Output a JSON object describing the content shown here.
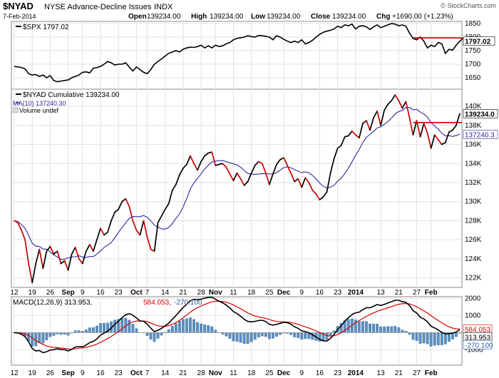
{
  "header": {
    "symbol": "$NYAD",
    "name": "NYSE Advance-Decline Issues",
    "exchange": "INDX",
    "date": "7-Feb-2014",
    "open_label": "Open",
    "open": "139234.00",
    "high_label": "High",
    "high": "139234.00",
    "low_label": "Low",
    "low": "139234.00",
    "close_label": "Close",
    "close": "139234.00",
    "chg_label": "Chg",
    "chg": "+1690.00 (+1.23%)",
    "watermark": "© StockCharts.com"
  },
  "colors": {
    "price": "#000000",
    "price_down": "#cc0000",
    "ma": "#2b2b9c",
    "macd": "#000000",
    "signal": "#dd0000",
    "hist": "#5a8fc2",
    "hline": "#cc0000"
  },
  "time_axis": {
    "labels": [
      {
        "i": 0,
        "t": "12"
      },
      {
        "i": 5,
        "t": "19"
      },
      {
        "i": 10,
        "t": "26"
      },
      {
        "i": 15,
        "t": "Sep",
        "bold": true
      },
      {
        "i": 19,
        "t": "9"
      },
      {
        "i": 24,
        "t": "16"
      },
      {
        "i": 29,
        "t": "23"
      },
      {
        "i": 34,
        "t": "Oct",
        "bold": true
      },
      {
        "i": 37,
        "t": "7"
      },
      {
        "i": 42,
        "t": "14"
      },
      {
        "i": 47,
        "t": "21"
      },
      {
        "i": 52,
        "t": "28"
      },
      {
        "i": 56,
        "t": "Nov",
        "bold": true
      },
      {
        "i": 61,
        "t": "11"
      },
      {
        "i": 66,
        "t": "18"
      },
      {
        "i": 71,
        "t": "25"
      },
      {
        "i": 75,
        "t": "Dec",
        "bold": true
      },
      {
        "i": 80,
        "t": "9"
      },
      {
        "i": 85,
        "t": "16"
      },
      {
        "i": 90,
        "t": "23"
      },
      {
        "i": 95,
        "t": "2014",
        "bold": true
      },
      {
        "i": 102,
        "t": "13"
      },
      {
        "i": 107,
        "t": "21"
      },
      {
        "i": 112,
        "t": "27"
      },
      {
        "i": 116,
        "t": "Feb",
        "bold": true
      }
    ]
  },
  "chart_data": [
    {
      "type": "line",
      "legend": "$SPX 1797.02",
      "ylim": [
        1608,
        1858
      ],
      "yticks": [
        "1650",
        "1700",
        "1750",
        "1800",
        "1850"
      ],
      "last_label": "1797.02",
      "hline": {
        "value": 1797.02,
        "from_i": 111
      },
      "values": [
        1692,
        1690,
        1688,
        1683,
        1665,
        1660,
        1662,
        1655,
        1660,
        1650,
        1658,
        1640,
        1635,
        1638,
        1640,
        1642,
        1650,
        1655,
        1660,
        1670,
        1672,
        1668,
        1685,
        1688,
        1692,
        1700,
        1710,
        1705,
        1697,
        1700,
        1700,
        1705,
        1690,
        1675,
        1690,
        1680,
        1670,
        1665,
        1680,
        1700,
        1710,
        1720,
        1730,
        1740,
        1745,
        1750,
        1745,
        1755,
        1760,
        1763,
        1762,
        1765,
        1770,
        1760,
        1768,
        1760,
        1770,
        1765,
        1768,
        1775,
        1780,
        1790,
        1795,
        1798,
        1800,
        1805,
        1802,
        1800,
        1806,
        1805,
        1803,
        1800,
        1790,
        1805,
        1800,
        1792,
        1785,
        1780,
        1785,
        1780,
        1790,
        1775,
        1780,
        1788,
        1800,
        1810,
        1818,
        1822,
        1825,
        1830,
        1840,
        1835,
        1845,
        1842,
        1848,
        1830,
        1840,
        1842,
        1838,
        1828,
        1838,
        1845,
        1835,
        1840,
        1845,
        1850,
        1848,
        1842,
        1845,
        1840,
        1815,
        1795,
        1790,
        1800,
        1785,
        1760,
        1770,
        1765,
        1780,
        1775,
        1740,
        1755,
        1752,
        1770,
        1785,
        1797.02
      ]
    },
    {
      "type": "line",
      "legend": "$NYAD Cumulative 139234.00",
      "ma_legend": "MA(10) 137240.30",
      "volume_legend": "Volume undef",
      "ylim": [
        121000,
        141800
      ],
      "yticks": [
        "122K",
        "124K",
        "126K",
        "128K",
        "130K",
        "132K",
        "134K",
        "136K",
        "138K",
        "140K"
      ],
      "last_label": "139234.0",
      "ma_last_label": "137240.3",
      "hline": {
        "value": 138300,
        "from_i": 111
      },
      "values": [
        128000,
        127800,
        127000,
        126000,
        123500,
        121500,
        123500,
        125000,
        123000,
        124800,
        125300,
        124500,
        124800,
        123500,
        123800,
        122800,
        124500,
        125200,
        124000,
        123500,
        124800,
        125500,
        124800,
        126000,
        127200,
        126500,
        126800,
        128000,
        128900,
        129200,
        130000,
        130300,
        129500,
        128000,
        127000,
        126500,
        128000,
        126300,
        125000,
        124800,
        127800,
        128500,
        129200,
        129800,
        131200,
        131800,
        132800,
        133500,
        133900,
        134800,
        134000,
        133300,
        134200,
        134800,
        135100,
        135200,
        133800,
        133900,
        134000,
        133600,
        132900,
        132200,
        133000,
        132400,
        131700,
        132100,
        133000,
        133800,
        134200,
        134000,
        133000,
        131800,
        132900,
        133900,
        134400,
        134600,
        133800,
        133000,
        132100,
        132400,
        131500,
        132500,
        132000,
        131200,
        130800,
        130200,
        130500,
        131000,
        133000,
        134500,
        135600,
        135900,
        136800,
        136900,
        137400,
        137000,
        136700,
        138200,
        138500,
        137500,
        138800,
        139500,
        138000,
        139600,
        140200,
        140600,
        141200,
        140600,
        139800,
        140500,
        138800,
        137000,
        138500,
        136800,
        138200,
        137200,
        135600,
        137000,
        136500,
        136000,
        136200,
        137300,
        137500,
        138000,
        139234
      ]
    },
    {
      "type": "line",
      "legend_macd": "MACD(12,26,9) 313.953,",
      "legend_signal": "584.053,",
      "legend_hist": "-270.100",
      "ylim": [
        -1900,
        2100
      ],
      "yticks": [
        "-1000",
        "0",
        "1000",
        "2000"
      ],
      "last_labels": [
        "584.053",
        "313.953",
        "-270.100"
      ]
    }
  ]
}
